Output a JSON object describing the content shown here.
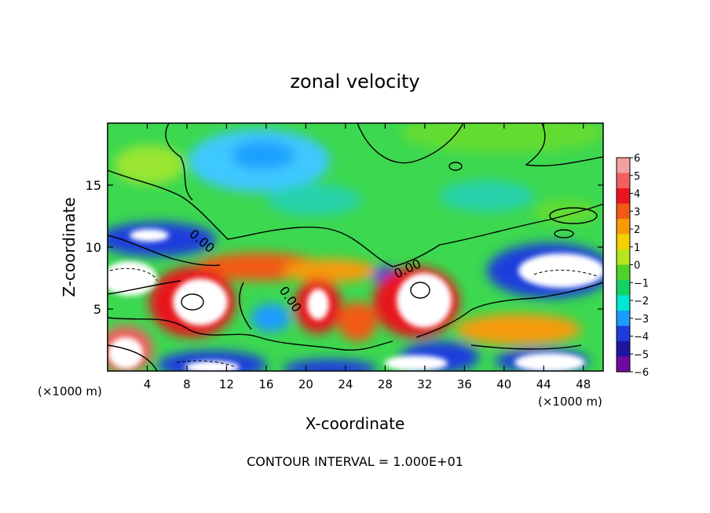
{
  "chart_data": {
    "type": "heatmap",
    "title": "zonal velocity",
    "xlabel": "X-coordinate",
    "ylabel": "Z-coordinate",
    "x_units": "(×1000 m)",
    "x_units_right": "(×1000 m)",
    "xlim": [
      0,
      50
    ],
    "ylim": [
      0,
      20
    ],
    "x_ticks": [
      4,
      8,
      12,
      16,
      20,
      24,
      28,
      32,
      36,
      40,
      44,
      48
    ],
    "y_ticks": [
      5,
      10,
      15
    ],
    "colorbar": {
      "range": [
        -6,
        6
      ],
      "ticks": [
        6,
        5,
        4,
        3,
        2,
        1,
        0,
        -1,
        -2,
        -3,
        -4,
        -5,
        -6
      ],
      "colors": [
        "#f5a0a0",
        "#f06060",
        "#e8141e",
        "#f25a14",
        "#f59b0a",
        "#f2d200",
        "#b4e61e",
        "#50d228",
        "#14d264",
        "#00e6d2",
        "#1e9bff",
        "#1e3cdc",
        "#1e14a0",
        "#6e0aa0"
      ]
    },
    "contour_labels": [
      "0.00",
      "0.00",
      "0.00"
    ],
    "footnote": "CONTOUR INTERVAL = 1.000E+01"
  }
}
